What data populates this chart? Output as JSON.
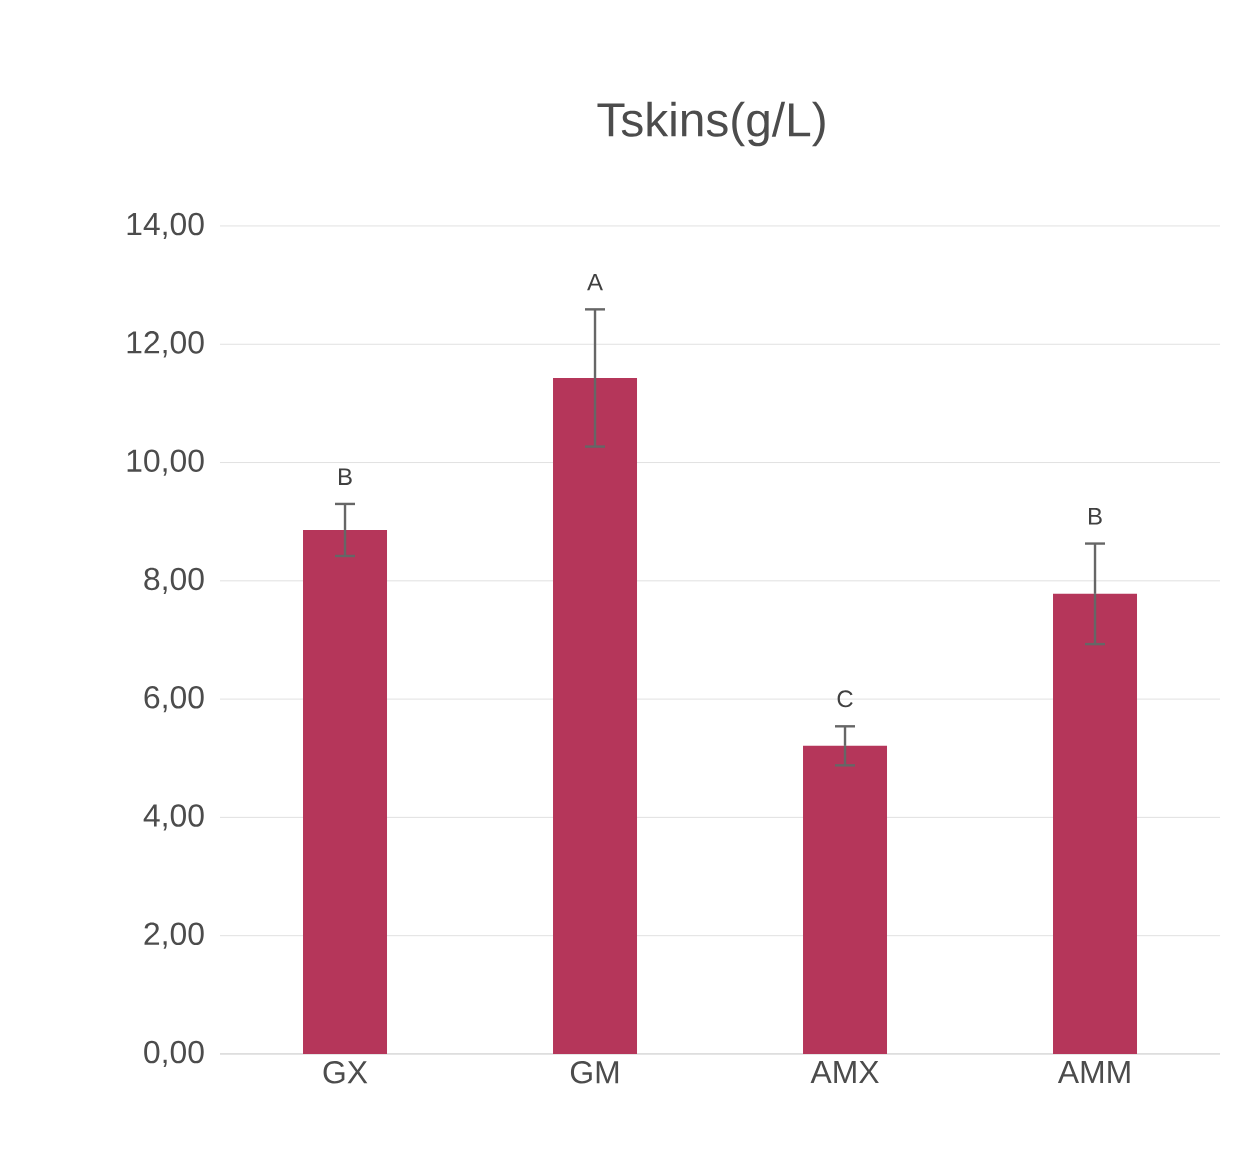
{
  "chart_data": {
    "type": "bar",
    "title": "Tskins(g/L)",
    "categories": [
      "GX",
      "GM",
      "AMX",
      "AMM"
    ],
    "values": [
      8.86,
      11.43,
      5.21,
      7.78
    ],
    "errors": [
      0.44,
      1.16,
      0.33,
      0.85
    ],
    "color": "#b5365a",
    "ylim": [
      0,
      14
    ],
    "yticks": [
      {
        "value": 0,
        "label": "0,00"
      },
      {
        "value": 2,
        "label": "2,00"
      },
      {
        "value": 4,
        "label": "4,00"
      },
      {
        "value": 6,
        "label": "6,00"
      },
      {
        "value": 8,
        "label": "8,00"
      },
      {
        "value": 10,
        "label": "10,00"
      },
      {
        "value": 12,
        "label": "12,00"
      },
      {
        "value": 14,
        "label": "14,00"
      }
    ],
    "grid": "y",
    "annotations": [
      "B",
      "A",
      "C",
      "B"
    ]
  }
}
